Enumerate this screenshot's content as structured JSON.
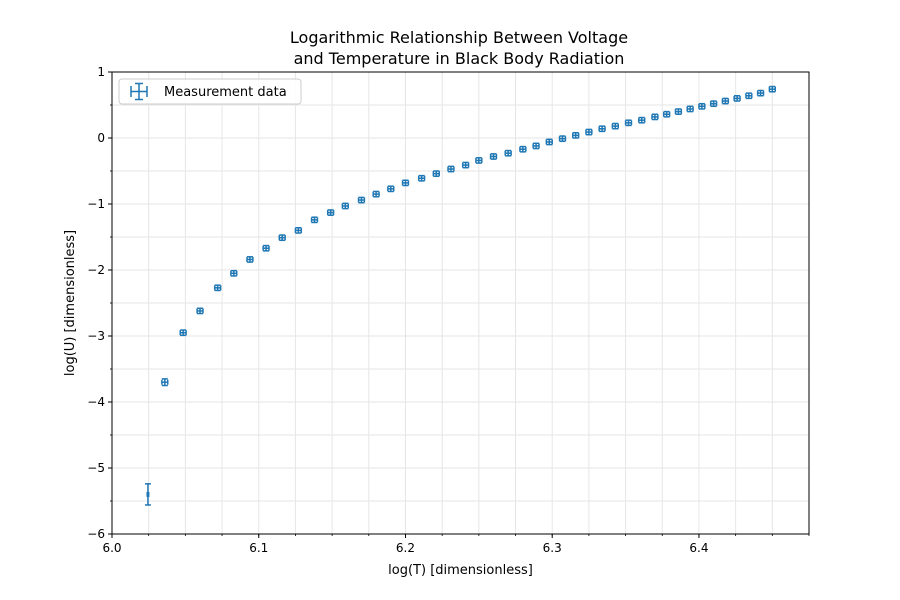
{
  "chart_data": {
    "type": "scatter",
    "title_lines": [
      "Logarithmic Relationship Between Voltage",
      "and Temperature in Black Body Radiation"
    ],
    "xlabel": "log(T) [dimensionless]",
    "ylabel": "log(U) [dimensionless]",
    "xlim": [
      6.0,
      6.475
    ],
    "ylim": [
      -6,
      1
    ],
    "xticks": [
      6.0,
      6.1,
      6.2,
      6.3,
      6.4
    ],
    "xtick_labels": [
      "6.0",
      "6.1",
      "6.2",
      "6.3",
      "6.4"
    ],
    "yticks": [
      -6,
      -5,
      -4,
      -3,
      -2,
      -1,
      0,
      1
    ],
    "ytick_labels": [
      "−6",
      "−5",
      "−4",
      "−3",
      "−2",
      "−1",
      "0",
      "1"
    ],
    "grid": true,
    "legend": {
      "position": "upper-left",
      "entries": [
        "Measurement data"
      ]
    },
    "colors": {
      "series": "#1f77b4",
      "grid": "#e6e6e6"
    },
    "series": [
      {
        "name": "Measurement data",
        "points": [
          {
            "x": 6.0245,
            "y": -5.4,
            "xerr": 0.0005,
            "yerr": 0.16
          },
          {
            "x": 6.036,
            "y": -3.7,
            "xerr": 0.002,
            "yerr": 0.05
          },
          {
            "x": 6.0485,
            "y": -2.95,
            "xerr": 0.002,
            "yerr": 0.04
          },
          {
            "x": 6.06,
            "y": -2.62,
            "xerr": 0.002,
            "yerr": 0.04
          },
          {
            "x": 6.072,
            "y": -2.27,
            "xerr": 0.002,
            "yerr": 0.04
          },
          {
            "x": 6.083,
            "y": -2.05,
            "xerr": 0.002,
            "yerr": 0.04
          },
          {
            "x": 6.094,
            "y": -1.84,
            "xerr": 0.002,
            "yerr": 0.04
          },
          {
            "x": 6.105,
            "y": -1.67,
            "xerr": 0.002,
            "yerr": 0.04
          },
          {
            "x": 6.116,
            "y": -1.51,
            "xerr": 0.002,
            "yerr": 0.04
          },
          {
            "x": 6.127,
            "y": -1.4,
            "xerr": 0.002,
            "yerr": 0.04
          },
          {
            "x": 6.138,
            "y": -1.24,
            "xerr": 0.002,
            "yerr": 0.04
          },
          {
            "x": 6.149,
            "y": -1.13,
            "xerr": 0.002,
            "yerr": 0.04
          },
          {
            "x": 6.159,
            "y": -1.03,
            "xerr": 0.002,
            "yerr": 0.04
          },
          {
            "x": 6.17,
            "y": -0.94,
            "xerr": 0.002,
            "yerr": 0.04
          },
          {
            "x": 6.18,
            "y": -0.85,
            "xerr": 0.002,
            "yerr": 0.04
          },
          {
            "x": 6.19,
            "y": -0.77,
            "xerr": 0.002,
            "yerr": 0.04
          },
          {
            "x": 6.2,
            "y": -0.68,
            "xerr": 0.002,
            "yerr": 0.04
          },
          {
            "x": 6.211,
            "y": -0.61,
            "xerr": 0.002,
            "yerr": 0.04
          },
          {
            "x": 6.221,
            "y": -0.54,
            "xerr": 0.002,
            "yerr": 0.04
          },
          {
            "x": 6.231,
            "y": -0.47,
            "xerr": 0.002,
            "yerr": 0.04
          },
          {
            "x": 6.241,
            "y": -0.41,
            "xerr": 0.002,
            "yerr": 0.04
          },
          {
            "x": 6.25,
            "y": -0.34,
            "xerr": 0.002,
            "yerr": 0.04
          },
          {
            "x": 6.26,
            "y": -0.28,
            "xerr": 0.002,
            "yerr": 0.04
          },
          {
            "x": 6.27,
            "y": -0.23,
            "xerr": 0.002,
            "yerr": 0.04
          },
          {
            "x": 6.28,
            "y": -0.17,
            "xerr": 0.002,
            "yerr": 0.04
          },
          {
            "x": 6.289,
            "y": -0.12,
            "xerr": 0.002,
            "yerr": 0.04
          },
          {
            "x": 6.298,
            "y": -0.06,
            "xerr": 0.002,
            "yerr": 0.04
          },
          {
            "x": 6.307,
            "y": -0.01,
            "xerr": 0.002,
            "yerr": 0.04
          },
          {
            "x": 6.316,
            "y": 0.04,
            "xerr": 0.002,
            "yerr": 0.04
          },
          {
            "x": 6.325,
            "y": 0.09,
            "xerr": 0.002,
            "yerr": 0.04
          },
          {
            "x": 6.334,
            "y": 0.14,
            "xerr": 0.002,
            "yerr": 0.04
          },
          {
            "x": 6.343,
            "y": 0.18,
            "xerr": 0.002,
            "yerr": 0.04
          },
          {
            "x": 6.352,
            "y": 0.23,
            "xerr": 0.002,
            "yerr": 0.04
          },
          {
            "x": 6.361,
            "y": 0.27,
            "xerr": 0.002,
            "yerr": 0.04
          },
          {
            "x": 6.37,
            "y": 0.32,
            "xerr": 0.002,
            "yerr": 0.04
          },
          {
            "x": 6.378,
            "y": 0.36,
            "xerr": 0.002,
            "yerr": 0.04
          },
          {
            "x": 6.386,
            "y": 0.4,
            "xerr": 0.002,
            "yerr": 0.04
          },
          {
            "x": 6.394,
            "y": 0.44,
            "xerr": 0.002,
            "yerr": 0.04
          },
          {
            "x": 6.402,
            "y": 0.48,
            "xerr": 0.002,
            "yerr": 0.04
          },
          {
            "x": 6.41,
            "y": 0.52,
            "xerr": 0.002,
            "yerr": 0.04
          },
          {
            "x": 6.418,
            "y": 0.56,
            "xerr": 0.002,
            "yerr": 0.04
          },
          {
            "x": 6.426,
            "y": 0.6,
            "xerr": 0.002,
            "yerr": 0.04
          },
          {
            "x": 6.434,
            "y": 0.64,
            "xerr": 0.002,
            "yerr": 0.04
          },
          {
            "x": 6.442,
            "y": 0.68,
            "xerr": 0.002,
            "yerr": 0.04
          },
          {
            "x": 6.45,
            "y": 0.74,
            "xerr": 0.002,
            "yerr": 0.04
          }
        ]
      }
    ]
  }
}
